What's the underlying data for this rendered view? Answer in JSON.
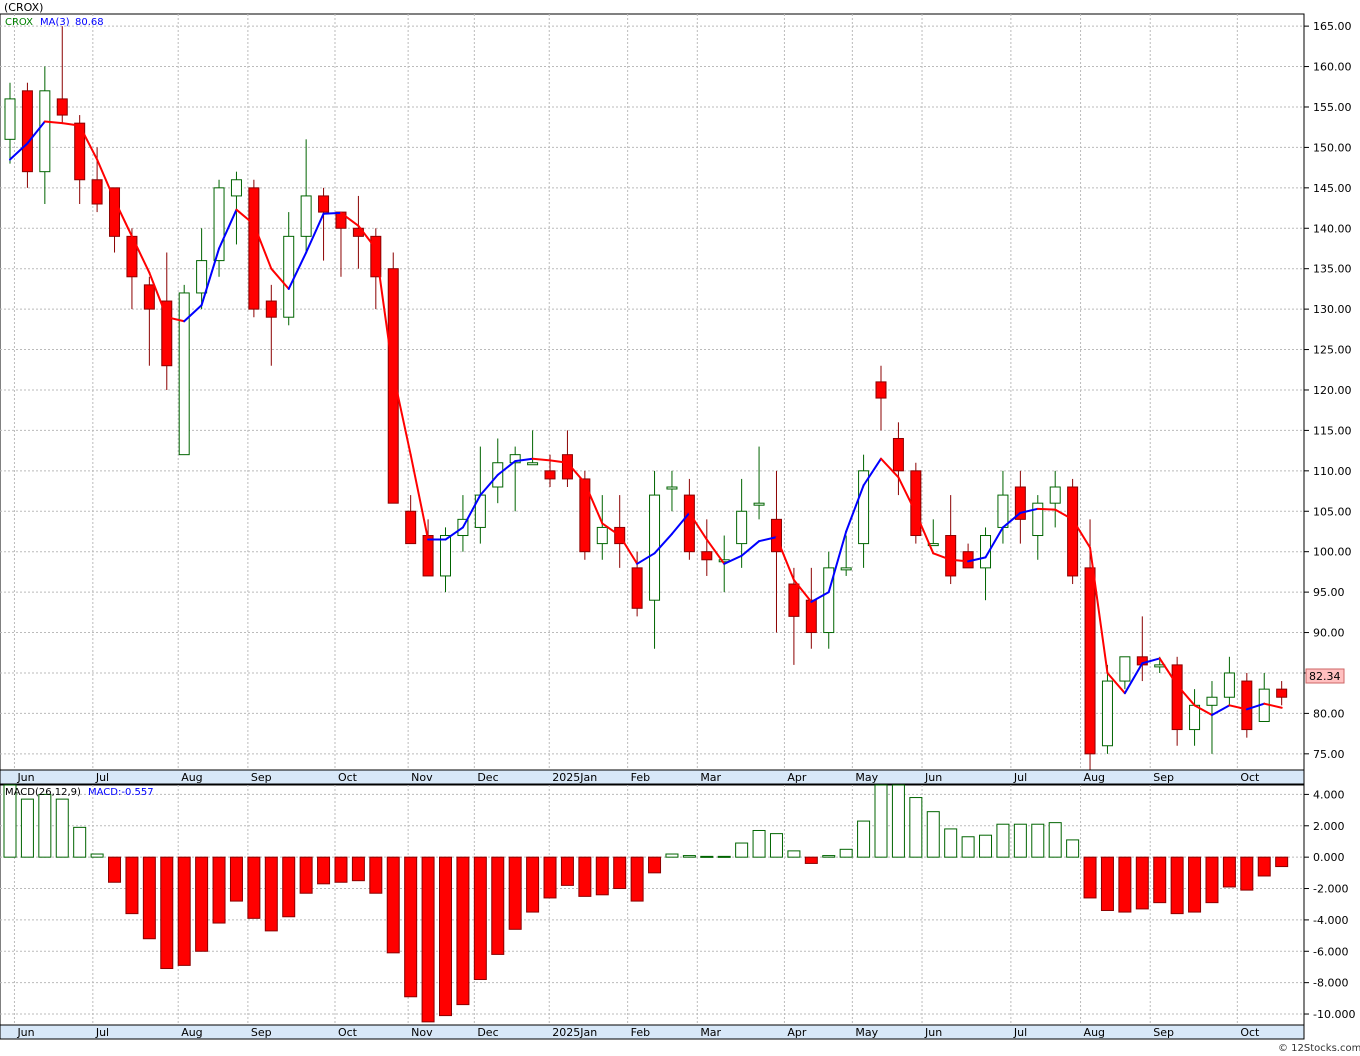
{
  "header": {
    "ticker_label": "(CROX)",
    "legend_symbol": "CROX",
    "legend_ma": "MA(3)",
    "legend_ma_value": "80.68",
    "macd_label": "MACD(26,12,9)",
    "macd_value": "MACD:-0.557",
    "last_price_badge": "82.34",
    "copyright": "© 12Stocks.com"
  },
  "colors": {
    "up_candle_fill": "#ffffff",
    "up_candle_stroke": "#006400",
    "down_candle_fill": "#ff0000",
    "down_candle_stroke": "#8b0000",
    "ma_up": "#0000ff",
    "ma_down": "#ff0000",
    "legend_symbol": "#008000",
    "legend_ma": "#0000ff",
    "badge_bg": "#ffc0c0",
    "grid": "#bbbbbb"
  },
  "chart_data": [
    {
      "type": "candlestick",
      "interval": "weekly",
      "y_ticks": [
        "165.00",
        "160.00",
        "155.00",
        "150.00",
        "145.00",
        "140.00",
        "135.00",
        "130.00",
        "125.00",
        "120.00",
        "115.00",
        "110.00",
        "105.00",
        "100.00",
        "95.00",
        "90.00",
        "85.00",
        "80.00",
        "75.00"
      ],
      "ylim": [
        73,
        166.5
      ],
      "month_labels": [
        {
          "label": "Jun",
          "index": 0.6
        },
        {
          "label": "Jul",
          "index": 5.1
        },
        {
          "label": "Aug",
          "index": 10.0
        },
        {
          "label": "Sep",
          "index": 14.0
        },
        {
          "label": "Oct",
          "index": 19.0
        },
        {
          "label": "Nov",
          "index": 23.2
        },
        {
          "label": "Dec",
          "index": 27.0
        },
        {
          "label": "2025Jan",
          "index": 31.3
        },
        {
          "label": "Feb",
          "index": 35.8
        },
        {
          "label": "Mar",
          "index": 39.8
        },
        {
          "label": "Apr",
          "index": 44.8
        },
        {
          "label": "May",
          "index": 48.7
        },
        {
          "label": "Jun",
          "index": 52.7
        },
        {
          "label": "Jul",
          "index": 57.8
        },
        {
          "label": "Aug",
          "index": 61.8
        },
        {
          "label": "Sep",
          "index": 65.8
        },
        {
          "label": "Oct",
          "index": 70.8
        }
      ],
      "candles": [
        [
          151,
          156,
          158,
          148
        ],
        [
          157,
          147,
          158,
          145
        ],
        [
          147,
          157,
          160,
          143
        ],
        [
          156,
          154,
          165,
          153
        ],
        [
          153,
          146,
          154,
          143
        ],
        [
          146,
          143,
          150,
          142
        ],
        [
          145,
          139,
          145,
          137
        ],
        [
          139,
          134,
          140,
          130
        ],
        [
          133,
          130,
          134,
          123
        ],
        [
          131,
          123,
          137,
          120
        ],
        [
          112,
          132,
          133,
          112
        ],
        [
          132,
          136,
          140,
          130
        ],
        [
          136,
          145,
          146,
          134
        ],
        [
          144,
          146,
          147,
          138
        ],
        [
          145,
          130,
          146,
          129
        ],
        [
          131,
          129,
          133,
          123
        ],
        [
          129,
          139,
          142,
          128
        ],
        [
          139,
          144,
          151,
          137
        ],
        [
          144,
          142,
          145,
          136
        ],
        [
          142,
          140,
          142,
          134
        ],
        [
          140,
          139,
          144,
          135
        ],
        [
          139,
          134,
          140,
          130
        ],
        [
          135,
          106,
          137,
          106
        ],
        [
          105,
          101,
          107,
          101
        ],
        [
          102,
          97,
          104,
          97
        ],
        [
          97,
          102,
          103,
          95
        ],
        [
          102,
          104,
          107,
          100
        ],
        [
          103,
          107,
          113,
          101
        ],
        [
          108,
          111,
          114,
          106
        ],
        [
          111,
          112,
          113,
          105
        ],
        [
          111,
          111,
          115,
          111
        ],
        [
          110,
          109,
          112,
          108
        ],
        [
          112,
          109,
          115,
          108
        ],
        [
          109,
          100,
          110,
          99
        ],
        [
          101,
          103,
          107,
          99
        ],
        [
          103,
          101,
          107,
          98
        ],
        [
          98,
          93,
          100,
          92
        ],
        [
          94,
          107,
          110,
          88
        ],
        [
          108,
          108,
          110,
          105
        ],
        [
          107,
          100,
          109,
          99
        ],
        [
          100,
          99,
          104,
          97
        ],
        [
          99,
          99,
          102,
          95
        ],
        [
          101,
          105,
          109,
          98
        ],
        [
          106,
          106,
          113,
          104
        ],
        [
          104,
          100,
          110,
          90
        ],
        [
          96,
          92,
          98,
          86
        ],
        [
          94,
          90,
          98,
          88
        ],
        [
          90,
          98,
          100,
          88
        ],
        [
          98,
          98,
          102,
          97
        ],
        [
          101,
          110,
          112,
          98
        ],
        [
          121,
          119,
          123,
          115
        ],
        [
          114,
          110,
          116,
          107
        ],
        [
          110,
          102,
          111,
          101
        ],
        [
          101,
          101,
          104,
          101
        ],
        [
          102,
          97,
          107,
          96
        ],
        [
          100,
          98,
          101,
          98
        ],
        [
          98,
          102,
          103,
          94
        ],
        [
          103,
          107,
          110,
          101
        ],
        [
          108,
          104,
          110,
          101
        ],
        [
          102,
          106,
          107,
          99
        ],
        [
          106,
          108,
          110,
          103
        ],
        [
          108,
          97,
          109,
          96
        ],
        [
          98,
          75,
          104,
          72
        ],
        [
          76,
          84,
          86,
          75
        ],
        [
          84,
          87,
          87,
          83
        ],
        [
          87,
          86,
          92,
          84
        ],
        [
          86,
          86,
          87,
          85
        ],
        [
          86,
          78,
          87,
          76
        ],
        [
          78,
          81,
          83,
          76
        ],
        [
          81,
          82,
          84,
          75
        ],
        [
          82,
          85,
          87,
          81
        ],
        [
          84,
          78,
          85,
          77
        ],
        [
          79,
          83,
          85,
          79
        ],
        [
          83,
          82,
          84,
          81
        ]
      ],
      "ma_values": [
        148.5,
        150.5,
        153.2,
        153.0,
        152.7,
        148.5,
        143.5,
        139.0,
        134.5,
        129.0,
        128.5,
        130.5,
        137.5,
        142.3,
        140.5,
        135.0,
        132.5,
        137.0,
        141.8,
        141.9,
        140.3,
        137.5,
        122.0,
        112.0,
        101.5,
        101.5,
        103.0,
        107.0,
        109.5,
        111.2,
        111.5,
        111.3,
        111.0,
        108.5,
        103.5,
        102.0,
        98.5,
        99.8,
        102.2,
        104.8,
        101.5,
        98.5,
        99.5,
        101.3,
        101.8,
        96.5,
        93.8,
        95.0,
        102.5,
        108.2,
        111.5,
        109.2,
        104.8,
        99.8,
        99.0,
        98.8,
        99.3,
        103.0,
        104.8,
        105.3,
        105.2,
        104.0,
        100.5,
        85.0,
        82.5,
        86.2,
        86.8,
        83.5,
        81.0,
        79.8,
        81.0,
        80.5,
        81.2,
        80.7
      ]
    },
    {
      "type": "bar",
      "title": "MACD(26,12,9)",
      "y_ticks": [
        "4.000",
        "2.000",
        "0.000",
        "-2.000",
        "-4.000",
        "-6.000",
        "-8.000",
        "-10.000"
      ],
      "ylim": [
        -10.7,
        4.6
      ],
      "values": [
        4.6,
        3.7,
        4.0,
        3.7,
        1.9,
        0.2,
        -1.6,
        -3.6,
        -5.2,
        -7.1,
        -6.9,
        -6.0,
        -4.2,
        -2.8,
        -3.9,
        -4.7,
        -3.8,
        -2.3,
        -1.7,
        -1.6,
        -1.5,
        -2.3,
        -6.1,
        -8.9,
        -10.5,
        -10.1,
        -9.4,
        -7.8,
        -6.2,
        -4.6,
        -3.5,
        -2.6,
        -1.8,
        -2.5,
        -2.4,
        -2.0,
        -2.8,
        -1.0,
        0.2,
        0.1,
        0.05,
        0.05,
        0.9,
        1.7,
        1.5,
        0.4,
        -0.4,
        0.1,
        0.5,
        2.3,
        4.6,
        4.6,
        3.8,
        2.9,
        1.8,
        1.3,
        1.4,
        2.1,
        2.1,
        2.1,
        2.2,
        1.1,
        -2.6,
        -3.4,
        -3.5,
        -3.3,
        -2.9,
        -3.6,
        -3.5,
        -2.9,
        -1.9,
        -2.1,
        -1.2,
        -0.6
      ]
    }
  ]
}
